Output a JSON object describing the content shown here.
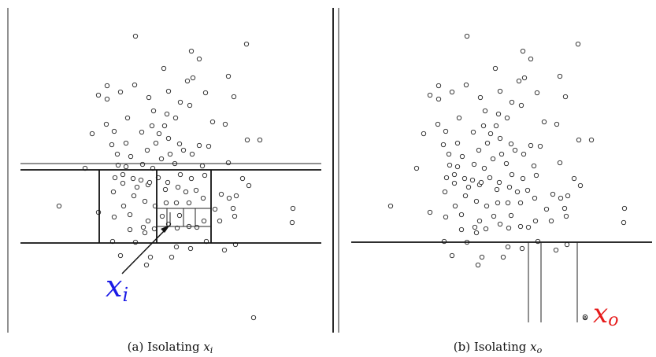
{
  "panels": [
    {
      "id": "a",
      "caption_prefix": "(a) Isolating ",
      "caption_var": "x",
      "caption_sub": "i",
      "label_main": "x",
      "label_sub": "i",
      "label_color": "#1a1ae6"
    },
    {
      "id": "b",
      "caption_prefix": "(b) Isolating ",
      "caption_var": "x",
      "caption_sub": "o",
      "label_main": "x",
      "label_sub": "o",
      "label_color": "#e61a1a"
    }
  ],
  "colors": {
    "point_stroke": "#222222",
    "partition_line": "#111111"
  }
}
